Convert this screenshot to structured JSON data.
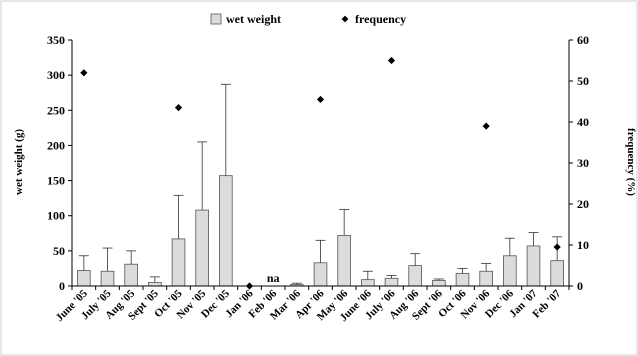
{
  "chart_data": {
    "type": "bar",
    "categories": [
      "June '05",
      "July '05",
      "Aug '05",
      "Sept '05",
      "Oct '05",
      "Nov '05",
      "Dec '05",
      "Jan '06",
      "Feb '06",
      "Mar '06",
      "Apr '06",
      "May '06",
      "June '06",
      "July '06",
      "Aug '06",
      "Sept '06",
      "Oct '06",
      "Nov '06",
      "Dec '06",
      "Jan '07",
      "Feb '07"
    ],
    "series": [
      {
        "name": "wet weight",
        "axis": "left",
        "kind": "bar",
        "color": "#dcdcdc",
        "values": [
          22,
          21,
          31,
          5,
          67,
          108,
          157,
          0,
          null,
          2,
          33,
          72,
          9,
          11,
          29,
          8,
          18,
          21,
          43,
          57,
          36
        ],
        "error_upper": [
          43,
          54,
          50,
          13,
          129,
          205,
          287,
          0,
          null,
          4,
          65,
          109,
          21,
          15,
          46,
          10,
          25,
          32,
          68,
          76,
          70
        ]
      },
      {
        "name": "frequency",
        "axis": "right",
        "kind": "marker",
        "marker": "diamond",
        "color": "#000000",
        "points": [
          {
            "index": 0,
            "value": 52
          },
          {
            "index": 4,
            "value": 43.5
          },
          {
            "index": 7,
            "value": 0
          },
          {
            "index": 10,
            "value": 45.5
          },
          {
            "index": 13,
            "value": 55
          },
          {
            "index": 17,
            "value": 39
          },
          {
            "index": 20,
            "value": 9.5
          }
        ]
      }
    ],
    "annotations": [
      {
        "index": 8,
        "text": "na"
      }
    ],
    "ylabel_left": "wet weight (g)",
    "ylabel_right": "frequency (%)",
    "ylim_left": [
      0,
      350
    ],
    "ylim_right": [
      0,
      60
    ],
    "yticks_left": [
      0,
      50,
      100,
      150,
      200,
      250,
      300,
      350
    ],
    "yticks_right": [
      0,
      10,
      20,
      30,
      40,
      50,
      60
    ],
    "legend": [
      "wet weight",
      "frequency"
    ],
    "legend_position": "top",
    "grid": false
  }
}
